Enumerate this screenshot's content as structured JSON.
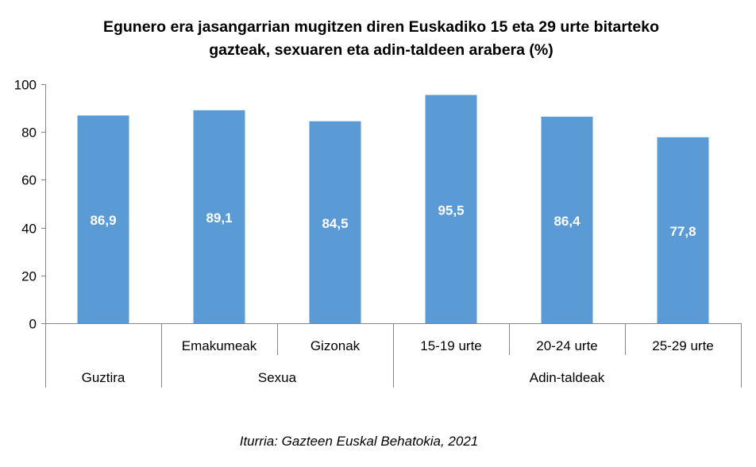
{
  "chart_data": {
    "type": "bar",
    "title_lines": [
      "Egunero era jasangarrian mugitzen diren Euskadiko 15 eta 29 urte bitarteko",
      "gazteak, sexuaren eta adin-taldeen arabera (%)"
    ],
    "categories": [
      "",
      "Emakumeak",
      "Gizonak",
      "15-19 urte",
      "20-24  urte",
      "25-29 urte"
    ],
    "groups": [
      {
        "label": "Guztira",
        "span": 1
      },
      {
        "label": "Sexua",
        "span": 2
      },
      {
        "label": "Adin-taldeak",
        "span": 3
      }
    ],
    "values": [
      86.9,
      89.1,
      84.5,
      95.5,
      86.4,
      77.8
    ],
    "data_labels": [
      "86,9",
      "89,1",
      "84,5",
      "95,5",
      "86,4",
      "77,8"
    ],
    "ylim": [
      0,
      100
    ],
    "yticks": [
      "0",
      "20",
      "40",
      "60",
      "80",
      "100"
    ],
    "grid": false,
    "bar_color": "#5b9bd5",
    "source": "Iturria: Gazteen Euskal Behatokia, 2021"
  }
}
